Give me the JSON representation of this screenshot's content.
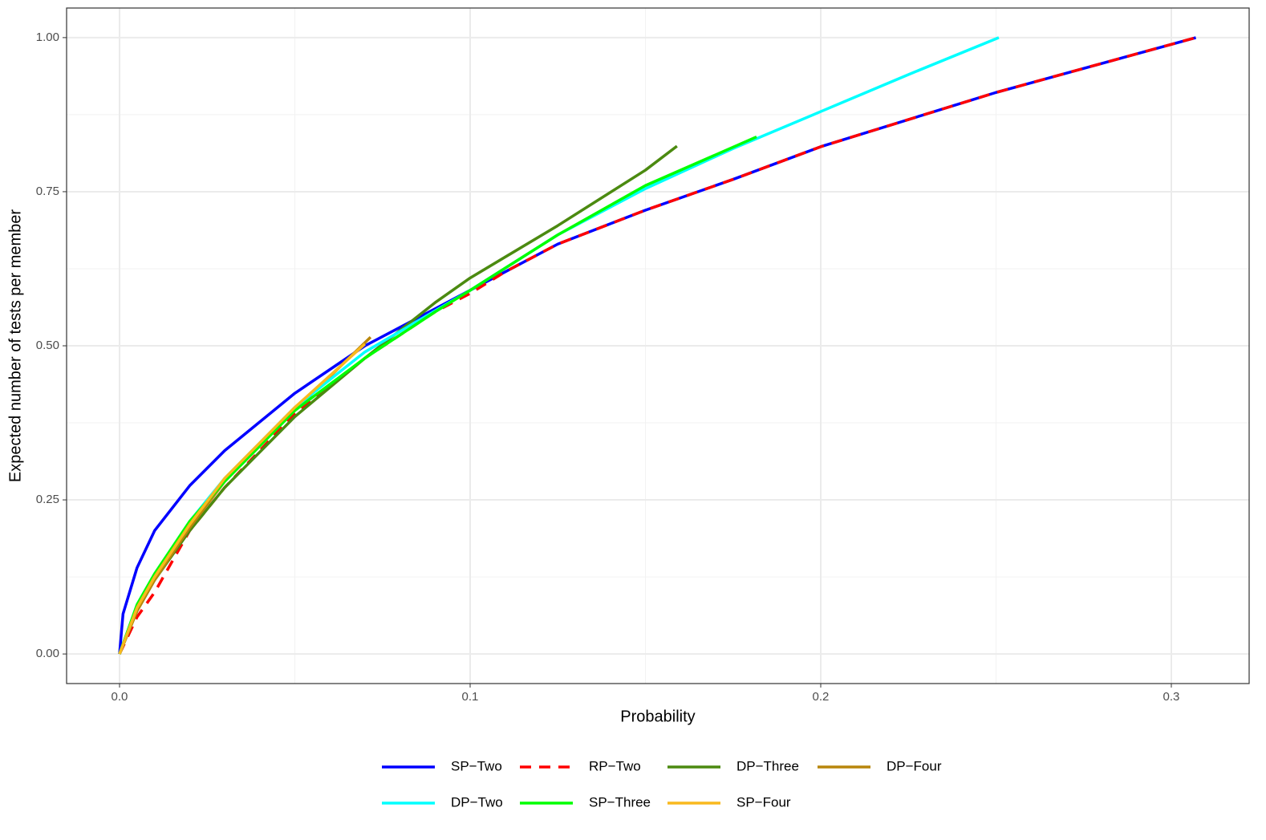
{
  "chart_data": {
    "type": "line",
    "x_label": "Probability",
    "y_label": "Expected number of tests per member",
    "xlim": [
      -0.0151,
      0.3222
    ],
    "ylim": [
      -0.048,
      1.048
    ],
    "xticks": [
      {
        "value": 0,
        "label": "0.0"
      },
      0.1,
      0.2,
      0.3
    ],
    "yticks": [
      {
        "value": 0,
        "label": "0.00"
      },
      0.25,
      {
        "value": 0.5,
        "label": "0.50"
      },
      0.75,
      {
        "value": 1,
        "label": "1.00"
      }
    ],
    "xminor": [
      0.05,
      0.15,
      0.25
    ],
    "yminor": [
      0.125,
      0.375,
      0.625,
      0.875
    ],
    "grid": true,
    "legend": "bottom",
    "series": [
      {
        "name": "SP−Two",
        "color": "#0000ff",
        "x": [
          0,
          0.001,
          0.005,
          0.01,
          0.02,
          0.03,
          0.05,
          0.07,
          0.1,
          0.125,
          0.15,
          0.175,
          0.2,
          0.25,
          0.307
        ],
        "values": [
          0,
          0.065,
          0.14,
          0.2,
          0.273,
          0.33,
          0.423,
          0.5,
          0.59,
          0.665,
          0.72,
          0.77,
          0.823,
          0.911,
          1.0
        ]
      },
      {
        "name": "RP−Two",
        "color": "#ff0000",
        "dash": true,
        "x": [
          0,
          0.005,
          0.01,
          0.02,
          0.03,
          0.05,
          0.07,
          0.09,
          0.1,
          0.11,
          0.125,
          0.15,
          0.175,
          0.2,
          0.25,
          0.307
        ],
        "values": [
          0,
          0.06,
          0.1,
          0.2,
          0.27,
          0.39,
          0.48,
          0.555,
          0.585,
          0.62,
          0.665,
          0.72,
          0.77,
          0.823,
          0.911,
          1.0
        ]
      },
      {
        "name": "DP−Three",
        "color": "#4b8a10",
        "x": [
          0,
          0.005,
          0.01,
          0.02,
          0.03,
          0.05,
          0.07,
          0.09,
          0.1,
          0.125,
          0.15,
          0.159
        ],
        "values": [
          0,
          0.07,
          0.12,
          0.2,
          0.27,
          0.385,
          0.48,
          0.57,
          0.61,
          0.695,
          0.785,
          0.824
        ]
      },
      {
        "name": "DP−Four",
        "color": "#b8860b",
        "x": [
          0,
          0.005,
          0.01,
          0.02,
          0.03,
          0.05,
          0.0716
        ],
        "values": [
          0,
          0.07,
          0.12,
          0.205,
          0.28,
          0.395,
          0.514
        ]
      },
      {
        "name": "DP−Two",
        "color": "#00ffff",
        "x": [
          0,
          0.005,
          0.01,
          0.02,
          0.03,
          0.05,
          0.07,
          0.1,
          0.125,
          0.15,
          0.175,
          0.2,
          0.225,
          0.2508
        ],
        "values": [
          0,
          0.08,
          0.13,
          0.215,
          0.285,
          0.4,
          0.49,
          0.59,
          0.68,
          0.755,
          0.82,
          0.88,
          0.94,
          1.0
        ]
      },
      {
        "name": "SP−Three",
        "color": "#00ff00",
        "x": [
          0,
          0.005,
          0.01,
          0.02,
          0.03,
          0.05,
          0.07,
          0.09,
          0.1,
          0.125,
          0.15,
          0.1817
        ],
        "values": [
          0,
          0.08,
          0.13,
          0.215,
          0.28,
          0.395,
          0.48,
          0.555,
          0.59,
          0.68,
          0.76,
          0.839
        ]
      },
      {
        "name": "SP−Four",
        "color": "#f9b91e",
        "x": [
          0,
          0.005,
          0.01,
          0.02,
          0.03,
          0.05,
          0.07
        ],
        "values": [
          0,
          0.075,
          0.125,
          0.21,
          0.285,
          0.4,
          0.503
        ]
      }
    ]
  }
}
